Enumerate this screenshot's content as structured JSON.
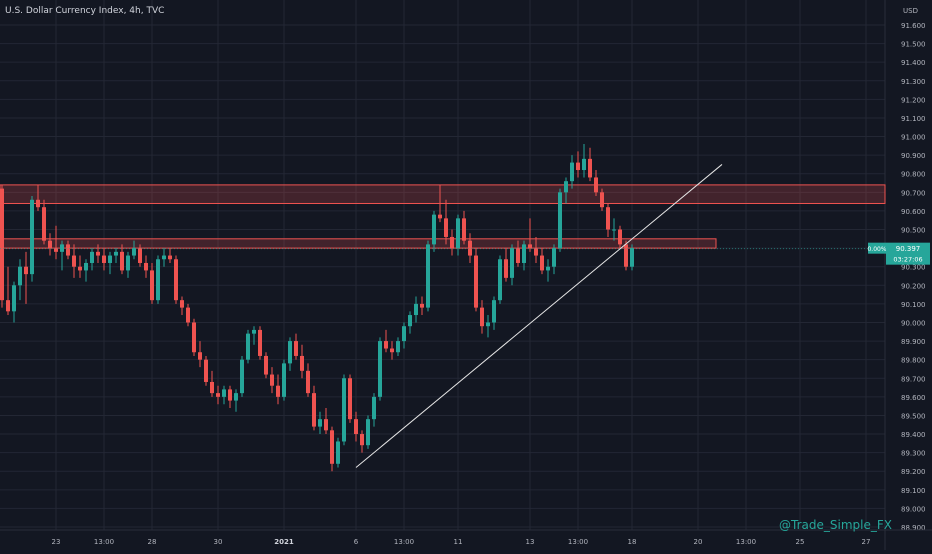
{
  "header": {
    "title": "U.S. Dollar Currency Index, 4h, TVC"
  },
  "axis": {
    "currency": "USD"
  },
  "watermark": "@Trade_Simple_FX",
  "price_tag": {
    "change": "0.00%",
    "price": "90.397",
    "countdown": "03:27:06"
  },
  "colors": {
    "up": "#26a69a",
    "down": "#ef5350",
    "background": "#131722",
    "grid": "#232734",
    "zone": "#ef5350",
    "trendline": "#e6e6e6"
  },
  "chart_data": {
    "type": "candlestick",
    "title": "U.S. Dollar Currency Index, 4h, TVC",
    "ylim": [
      88.88,
      91.62
    ],
    "yticks": [
      "91.600",
      "91.500",
      "91.400",
      "91.300",
      "91.200",
      "91.100",
      "91.000",
      "90.900",
      "90.800",
      "90.700",
      "90.600",
      "90.500",
      "90.400",
      "90.300",
      "90.200",
      "90.100",
      "90.000",
      "89.900",
      "89.800",
      "89.700",
      "89.600",
      "89.500",
      "89.400",
      "89.300",
      "89.200",
      "89.100",
      "89.000",
      "88.900"
    ],
    "xticks": [
      {
        "label": "23",
        "bar": 9,
        "bold": false
      },
      {
        "label": "13:00",
        "bar": 17,
        "bold": false
      },
      {
        "label": "28",
        "bar": 25,
        "bold": false
      },
      {
        "label": "30",
        "bar": 36,
        "bold": false
      },
      {
        "label": "2021",
        "bar": 47,
        "bold": true
      },
      {
        "label": "6",
        "bar": 59,
        "bold": false
      },
      {
        "label": "13:00",
        "bar": 67,
        "bold": false
      },
      {
        "label": "11",
        "bar": 76,
        "bold": false
      },
      {
        "label": "13",
        "bar": 88,
        "bold": false
      },
      {
        "label": "13:00",
        "bar": 96,
        "bold": false
      },
      {
        "label": "18",
        "bar": 105,
        "bold": false
      },
      {
        "label": "20",
        "bar": 116,
        "bold": false
      },
      {
        "label": "13:00",
        "bar": 124,
        "bold": false
      },
      {
        "label": "25",
        "bar": 133,
        "bold": false
      },
      {
        "label": "27",
        "bar": 144,
        "bold": false
      }
    ],
    "candles": [
      [
        90.72,
        90.74,
        90.08,
        90.12
      ],
      [
        90.12,
        90.3,
        90.04,
        90.06
      ],
      [
        90.06,
        90.22,
        90.0,
        90.2
      ],
      [
        90.2,
        90.34,
        90.12,
        90.3
      ],
      [
        90.3,
        90.38,
        90.1,
        90.26
      ],
      [
        90.26,
        90.68,
        90.22,
        90.66
      ],
      [
        90.66,
        90.74,
        90.6,
        90.62
      ],
      [
        90.62,
        90.66,
        90.42,
        90.44
      ],
      [
        90.44,
        90.48,
        90.36,
        90.4
      ],
      [
        90.4,
        90.52,
        90.34,
        90.38
      ],
      [
        90.38,
        90.44,
        90.28,
        90.42
      ],
      [
        90.42,
        90.44,
        90.34,
        90.36
      ],
      [
        90.36,
        90.42,
        90.24,
        90.3
      ],
      [
        90.3,
        90.36,
        90.24,
        90.28
      ],
      [
        90.28,
        90.34,
        90.22,
        90.32
      ],
      [
        90.32,
        90.4,
        90.28,
        90.38
      ],
      [
        90.38,
        90.42,
        90.32,
        90.36
      ],
      [
        90.36,
        90.4,
        90.28,
        90.32
      ],
      [
        90.32,
        90.38,
        90.26,
        90.36
      ],
      [
        90.36,
        90.4,
        90.32,
        90.38
      ],
      [
        90.38,
        90.42,
        90.26,
        90.28
      ],
      [
        90.28,
        90.38,
        90.24,
        90.36
      ],
      [
        90.36,
        90.44,
        90.34,
        90.4
      ],
      [
        90.4,
        90.42,
        90.3,
        90.32
      ],
      [
        90.32,
        90.36,
        90.24,
        90.28
      ],
      [
        90.28,
        90.32,
        90.1,
        90.12
      ],
      [
        90.12,
        90.36,
        90.1,
        90.34
      ],
      [
        90.34,
        90.4,
        90.3,
        90.36
      ],
      [
        90.36,
        90.4,
        90.32,
        90.34
      ],
      [
        90.34,
        90.36,
        90.1,
        90.12
      ],
      [
        90.12,
        90.14,
        90.04,
        90.08
      ],
      [
        90.08,
        90.1,
        89.98,
        90.0
      ],
      [
        90.0,
        90.02,
        89.82,
        89.84
      ],
      [
        89.84,
        89.9,
        89.76,
        89.8
      ],
      [
        89.8,
        89.82,
        89.66,
        89.68
      ],
      [
        89.68,
        89.74,
        89.6,
        89.62
      ],
      [
        89.62,
        89.66,
        89.56,
        89.6
      ],
      [
        89.6,
        89.66,
        89.56,
        89.64
      ],
      [
        89.64,
        89.66,
        89.54,
        89.58
      ],
      [
        89.58,
        89.64,
        89.52,
        89.62
      ],
      [
        89.62,
        89.82,
        89.6,
        89.8
      ],
      [
        89.8,
        89.96,
        89.78,
        89.94
      ],
      [
        89.94,
        89.98,
        89.88,
        89.96
      ],
      [
        89.96,
        89.98,
        89.8,
        89.82
      ],
      [
        89.82,
        89.84,
        89.7,
        89.72
      ],
      [
        89.72,
        89.76,
        89.62,
        89.66
      ],
      [
        89.66,
        89.72,
        89.56,
        89.6
      ],
      [
        89.6,
        89.8,
        89.58,
        89.78
      ],
      [
        89.78,
        89.92,
        89.74,
        89.9
      ],
      [
        89.9,
        89.94,
        89.8,
        89.82
      ],
      [
        89.82,
        89.88,
        89.7,
        89.74
      ],
      [
        89.74,
        89.78,
        89.6,
        89.62
      ],
      [
        89.62,
        89.66,
        89.42,
        89.44
      ],
      [
        89.44,
        89.52,
        89.4,
        89.48
      ],
      [
        89.48,
        89.54,
        89.4,
        89.42
      ],
      [
        89.42,
        89.44,
        89.2,
        89.24
      ],
      [
        89.24,
        89.38,
        89.22,
        89.36
      ],
      [
        89.36,
        89.72,
        89.34,
        89.7
      ],
      [
        89.7,
        89.72,
        89.46,
        89.48
      ],
      [
        89.48,
        89.52,
        89.36,
        89.4
      ],
      [
        89.4,
        89.42,
        89.3,
        89.34
      ],
      [
        89.34,
        89.5,
        89.32,
        89.48
      ],
      [
        89.48,
        89.62,
        89.44,
        89.6
      ],
      [
        89.6,
        89.92,
        89.58,
        89.9
      ],
      [
        89.9,
        89.96,
        89.84,
        89.86
      ],
      [
        89.86,
        89.9,
        89.8,
        89.84
      ],
      [
        89.84,
        89.92,
        89.82,
        89.9
      ],
      [
        89.9,
        90.0,
        89.86,
        89.98
      ],
      [
        89.98,
        90.06,
        89.94,
        90.04
      ],
      [
        90.04,
        90.14,
        90.0,
        90.1
      ],
      [
        90.1,
        90.14,
        90.04,
        90.08
      ],
      [
        90.08,
        90.44,
        90.06,
        90.42
      ],
      [
        90.42,
        90.6,
        90.38,
        90.58
      ],
      [
        90.58,
        90.74,
        90.54,
        90.56
      ],
      [
        90.56,
        90.66,
        90.42,
        90.46
      ],
      [
        90.46,
        90.5,
        90.36,
        90.4
      ],
      [
        90.4,
        90.58,
        90.36,
        90.56
      ],
      [
        90.56,
        90.6,
        90.42,
        90.44
      ],
      [
        90.44,
        90.48,
        90.32,
        90.36
      ],
      [
        90.36,
        90.4,
        90.06,
        90.08
      ],
      [
        90.08,
        90.12,
        89.94,
        89.98
      ],
      [
        89.98,
        90.04,
        89.92,
        90.0
      ],
      [
        90.0,
        90.14,
        89.96,
        90.12
      ],
      [
        90.12,
        90.36,
        90.1,
        90.34
      ],
      [
        90.34,
        90.4,
        90.22,
        90.24
      ],
      [
        90.24,
        90.42,
        90.2,
        90.4
      ],
      [
        90.4,
        90.44,
        90.3,
        90.32
      ],
      [
        90.32,
        90.44,
        90.28,
        90.42
      ],
      [
        90.42,
        90.56,
        90.38,
        90.4
      ],
      [
        90.4,
        90.46,
        90.32,
        90.36
      ],
      [
        90.36,
        90.4,
        90.26,
        90.28
      ],
      [
        90.28,
        90.34,
        90.22,
        90.3
      ],
      [
        90.3,
        90.42,
        90.26,
        90.4
      ],
      [
        90.4,
        90.72,
        90.38,
        90.7
      ],
      [
        90.7,
        90.78,
        90.64,
        90.76
      ],
      [
        90.76,
        90.9,
        90.72,
        90.86
      ],
      [
        90.86,
        90.92,
        90.78,
        90.82
      ],
      [
        90.82,
        90.96,
        90.78,
        90.88
      ],
      [
        90.88,
        90.94,
        90.76,
        90.78
      ],
      [
        90.78,
        90.82,
        90.68,
        90.7
      ],
      [
        90.7,
        90.72,
        90.6,
        90.62
      ],
      [
        90.62,
        90.64,
        90.46,
        90.5
      ],
      [
        90.5,
        90.56,
        90.44,
        90.5
      ],
      [
        90.5,
        90.52,
        90.4,
        90.42
      ],
      [
        90.42,
        90.44,
        90.28,
        90.3
      ],
      [
        90.3,
        90.42,
        90.28,
        90.4
      ]
    ],
    "zones": [
      {
        "from": 90.64,
        "to": 90.74,
        "end_bar": null
      },
      {
        "from": 90.4,
        "to": 90.45,
        "end_bar": 119
      }
    ],
    "trendline": {
      "bar_start": 59,
      "price_start": 89.22,
      "bar_end": 120,
      "price_end": 90.85
    }
  }
}
